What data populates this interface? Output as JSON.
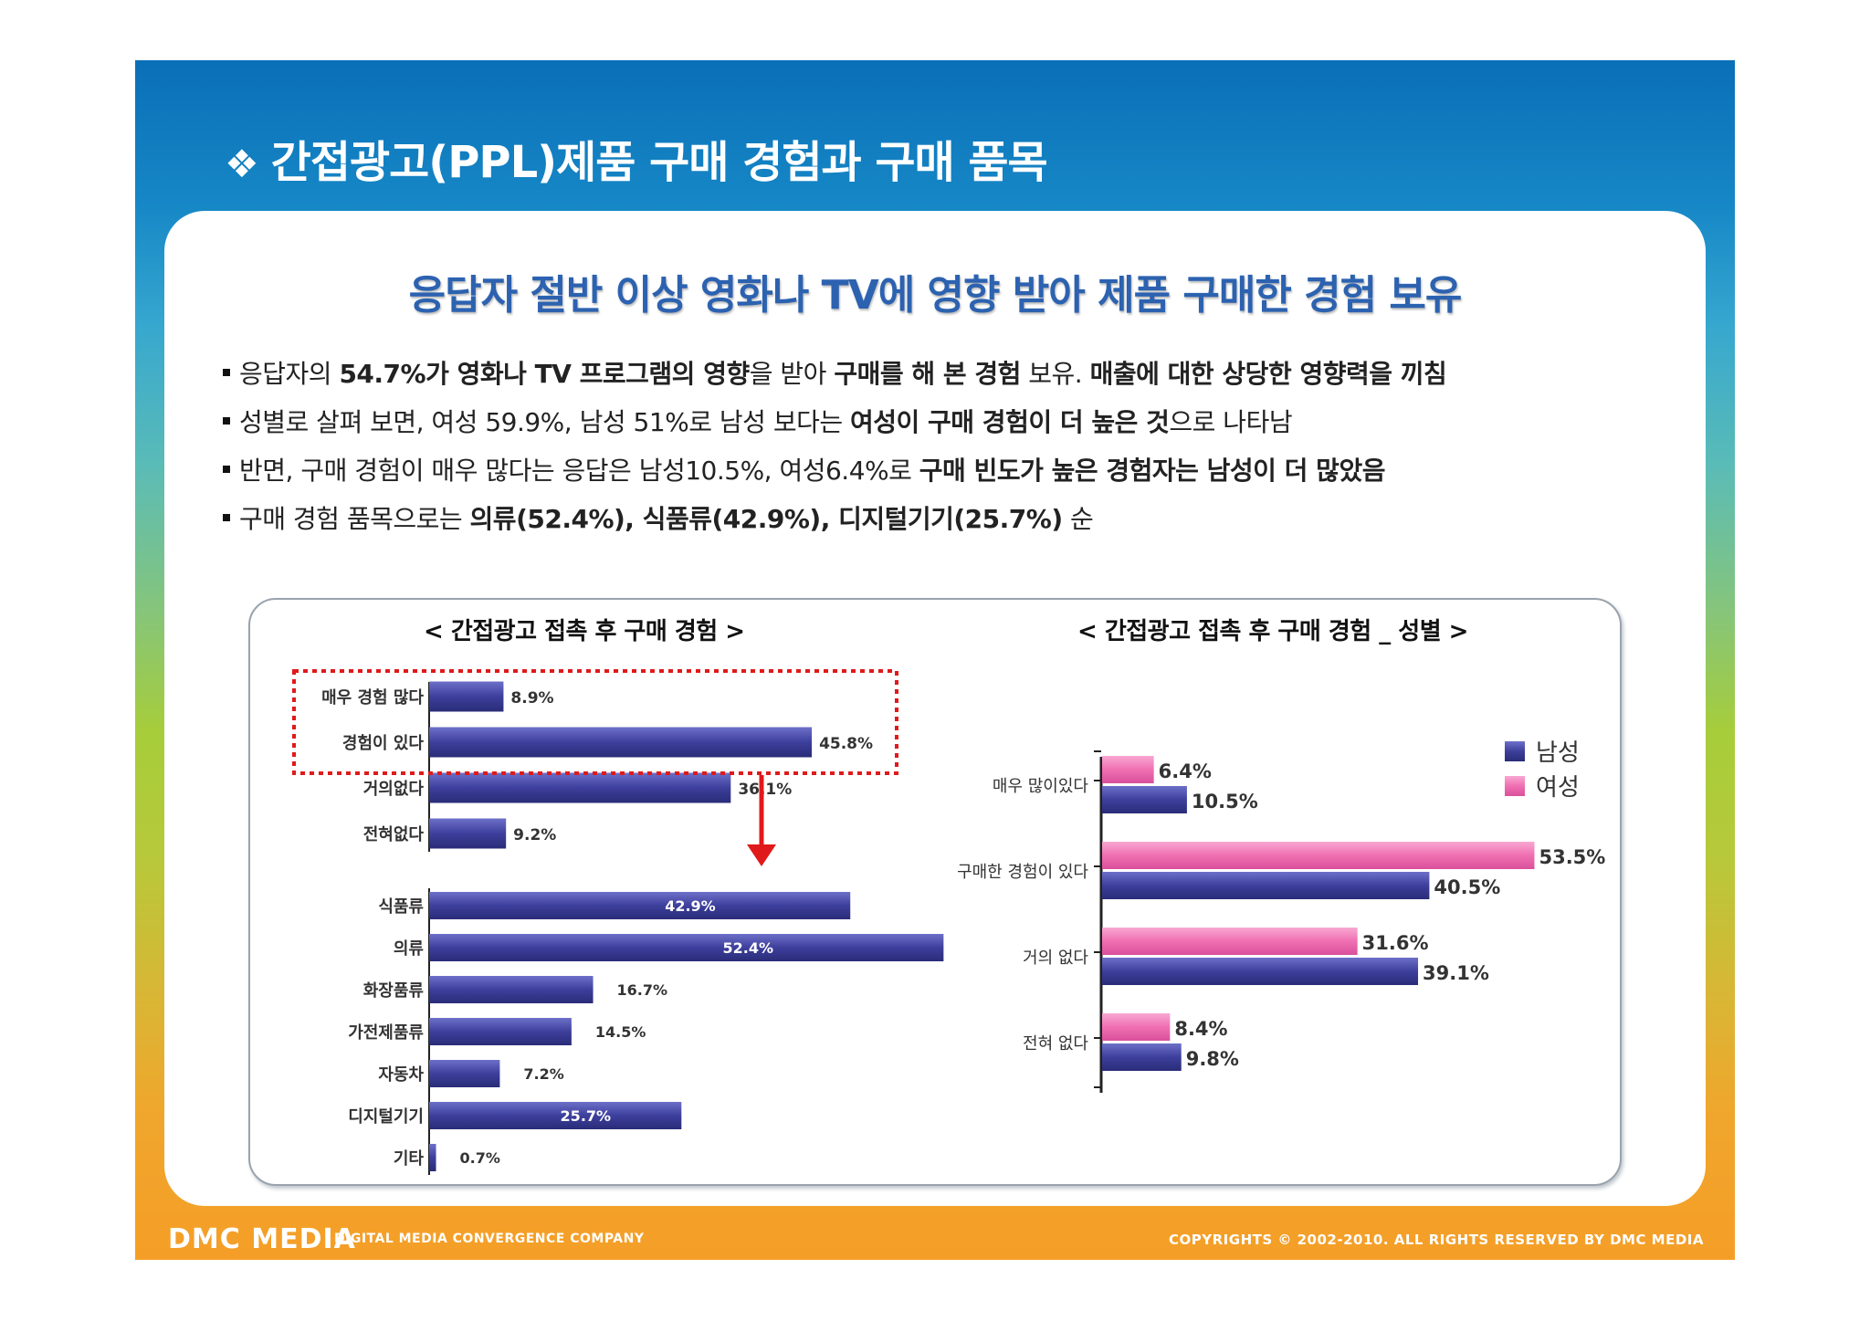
{
  "slide": {
    "title_mark": "❖",
    "title": "간접광고(PPL)제품 구매 경험과 구매 품목",
    "headline": "응답자 절반 이상 영화나 TV에 영향 받아 제품 구매한 경험 보유"
  },
  "bullets": [
    {
      "parts": [
        {
          "t": "응답자의 ",
          "b": false
        },
        {
          "t": "54.7%가 영화나 TV 프로그램의 영향",
          "b": true
        },
        {
          "t": "을 받아 ",
          "b": false
        },
        {
          "t": "구매를 해 본 경험",
          "b": true
        },
        {
          "t": " 보유. ",
          "b": false
        },
        {
          "t": "매출에 대한 상당한 영향력을 끼침",
          "b": true
        }
      ]
    },
    {
      "parts": [
        {
          "t": "성별로 살펴 보면, 여성 59.9%, 남성 51%로 남성 보다는 ",
          "b": false
        },
        {
          "t": "여성이 구매 경험이 더 높은 것",
          "b": true
        },
        {
          "t": "으로 나타남",
          "b": false
        }
      ]
    },
    {
      "parts": [
        {
          "t": "반면, 구매 경험이 매우 많다는 응답은 남성10.5%, 여성6.4%로 ",
          "b": false
        },
        {
          "t": "구매 빈도가 높은 경험자는 남성이 더 많았음",
          "b": true
        }
      ]
    },
    {
      "parts": [
        {
          "t": "구매 경험 품목으로는 ",
          "b": false
        },
        {
          "t": "의류(52.4%), 식품류(42.9%), 디지털기기(25.7%)",
          "b": true
        },
        {
          "t": " 순",
          "b": false
        }
      ]
    }
  ],
  "chart_data": [
    {
      "type": "bar",
      "orientation": "horizontal",
      "title": "< 간접광고 접촉 후 구매 경험 >",
      "categories": [
        "매우 경험 많다",
        "경험이 있다",
        "거의없다",
        "전혀없다"
      ],
      "values": [
        8.9,
        45.8,
        36.1,
        9.2
      ],
      "labels": [
        "8.9%",
        "45.8%",
        "36.1%",
        "9.2%"
      ],
      "highlighted": [
        "매우 경험 많다",
        "경험이 있다"
      ],
      "color": "#3d3f9c",
      "xlim": [
        0,
        60
      ]
    },
    {
      "type": "bar",
      "orientation": "horizontal",
      "title": "",
      "categories": [
        "식품류",
        "의류",
        "화장품류",
        "가전제품류",
        "자동차",
        "디지털기기",
        "기타"
      ],
      "values": [
        42.9,
        52.4,
        16.7,
        14.5,
        7.2,
        25.7,
        0.7
      ],
      "labels": [
        "42.9%",
        "52.4%",
        "16.7%",
        "14.5%",
        "7.2%",
        "25.7%",
        "0.7%"
      ],
      "color": "#3d3f9c",
      "xlim": [
        0,
        60
      ]
    },
    {
      "type": "bar",
      "orientation": "horizontal",
      "title": "< 간접광고 접촉 후 구매 경험 _ 성별 >",
      "categories": [
        "매우 많이있다",
        "구매한 경험이 있다",
        "거의 없다",
        "전혀 없다"
      ],
      "series": [
        {
          "name": "여성",
          "values": [
            6.4,
            53.5,
            31.6,
            8.4
          ],
          "labels": [
            "6.4%",
            "53.5%",
            "31.6%",
            "8.4%"
          ],
          "color": "#f06fb2"
        },
        {
          "name": "남성",
          "values": [
            10.5,
            40.5,
            39.1,
            9.8
          ],
          "labels": [
            "10.5%",
            "40.5%",
            "39.1%",
            "9.8%"
          ],
          "color": "#3d3f9c"
        }
      ],
      "legend": [
        "남성",
        "여성"
      ],
      "legend_position": "top-right",
      "xlim": [
        0,
        60
      ]
    }
  ],
  "footer": {
    "logo": "DMC MEDIA",
    "tagline": "DIGITAL MEDIA CONVERGENCE COMPANY",
    "copyright": "COPYRIGHTS © 2002-2010. ALL RIGHTS RESERVED BY DMC MEDIA"
  }
}
